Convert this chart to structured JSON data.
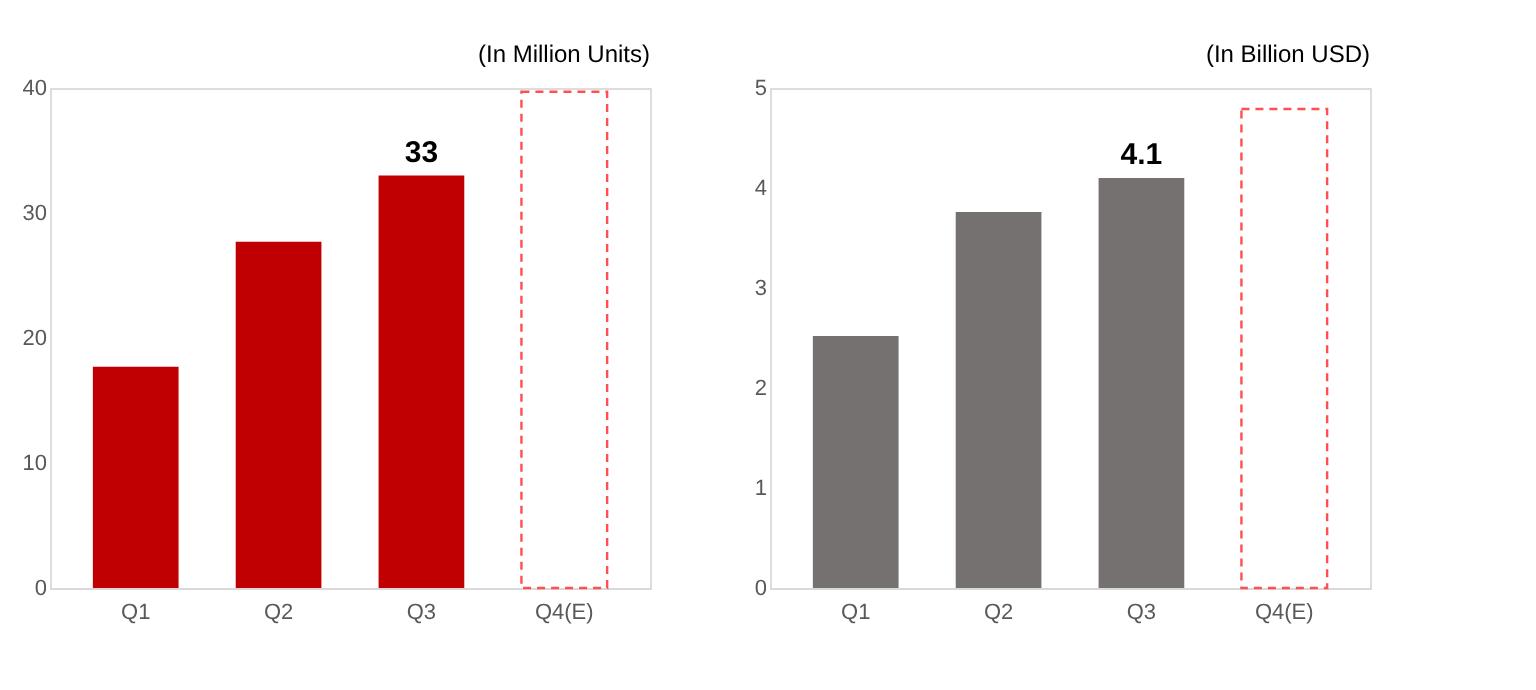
{
  "chart_data": [
    {
      "type": "bar",
      "subtitle": "(In Million Units)",
      "categories": [
        "Q1",
        "Q2",
        "Q3",
        "Q4(E)"
      ],
      "series": [
        {
          "color": "#c00000",
          "values": [
            17.7,
            27.7,
            33,
            null
          ],
          "value_labels": [
            null,
            null,
            "33",
            null
          ]
        },
        {
          "color": "#ff5050",
          "line_style": "dashed",
          "values": [
            null,
            null,
            null,
            39.7
          ]
        }
      ],
      "ylim": [
        0,
        40
      ],
      "yticks": [
        0,
        10,
        20,
        30,
        40
      ],
      "grid": false
    },
    {
      "type": "bar",
      "subtitle": "(In Billion USD)",
      "categories": [
        "Q1",
        "Q2",
        "Q3",
        "Q4(E)"
      ],
      "series": [
        {
          "color": "#767171",
          "values": [
            2.52,
            3.76,
            4.1,
            null
          ],
          "value_labels": [
            null,
            null,
            "4.1",
            null
          ]
        },
        {
          "color": "#ff5050",
          "line_style": "dashed",
          "values": [
            null,
            null,
            null,
            4.79
          ]
        }
      ],
      "ylim": [
        0,
        5
      ],
      "yticks": [
        0,
        1,
        2,
        3,
        4,
        5
      ],
      "grid": false
    }
  ]
}
